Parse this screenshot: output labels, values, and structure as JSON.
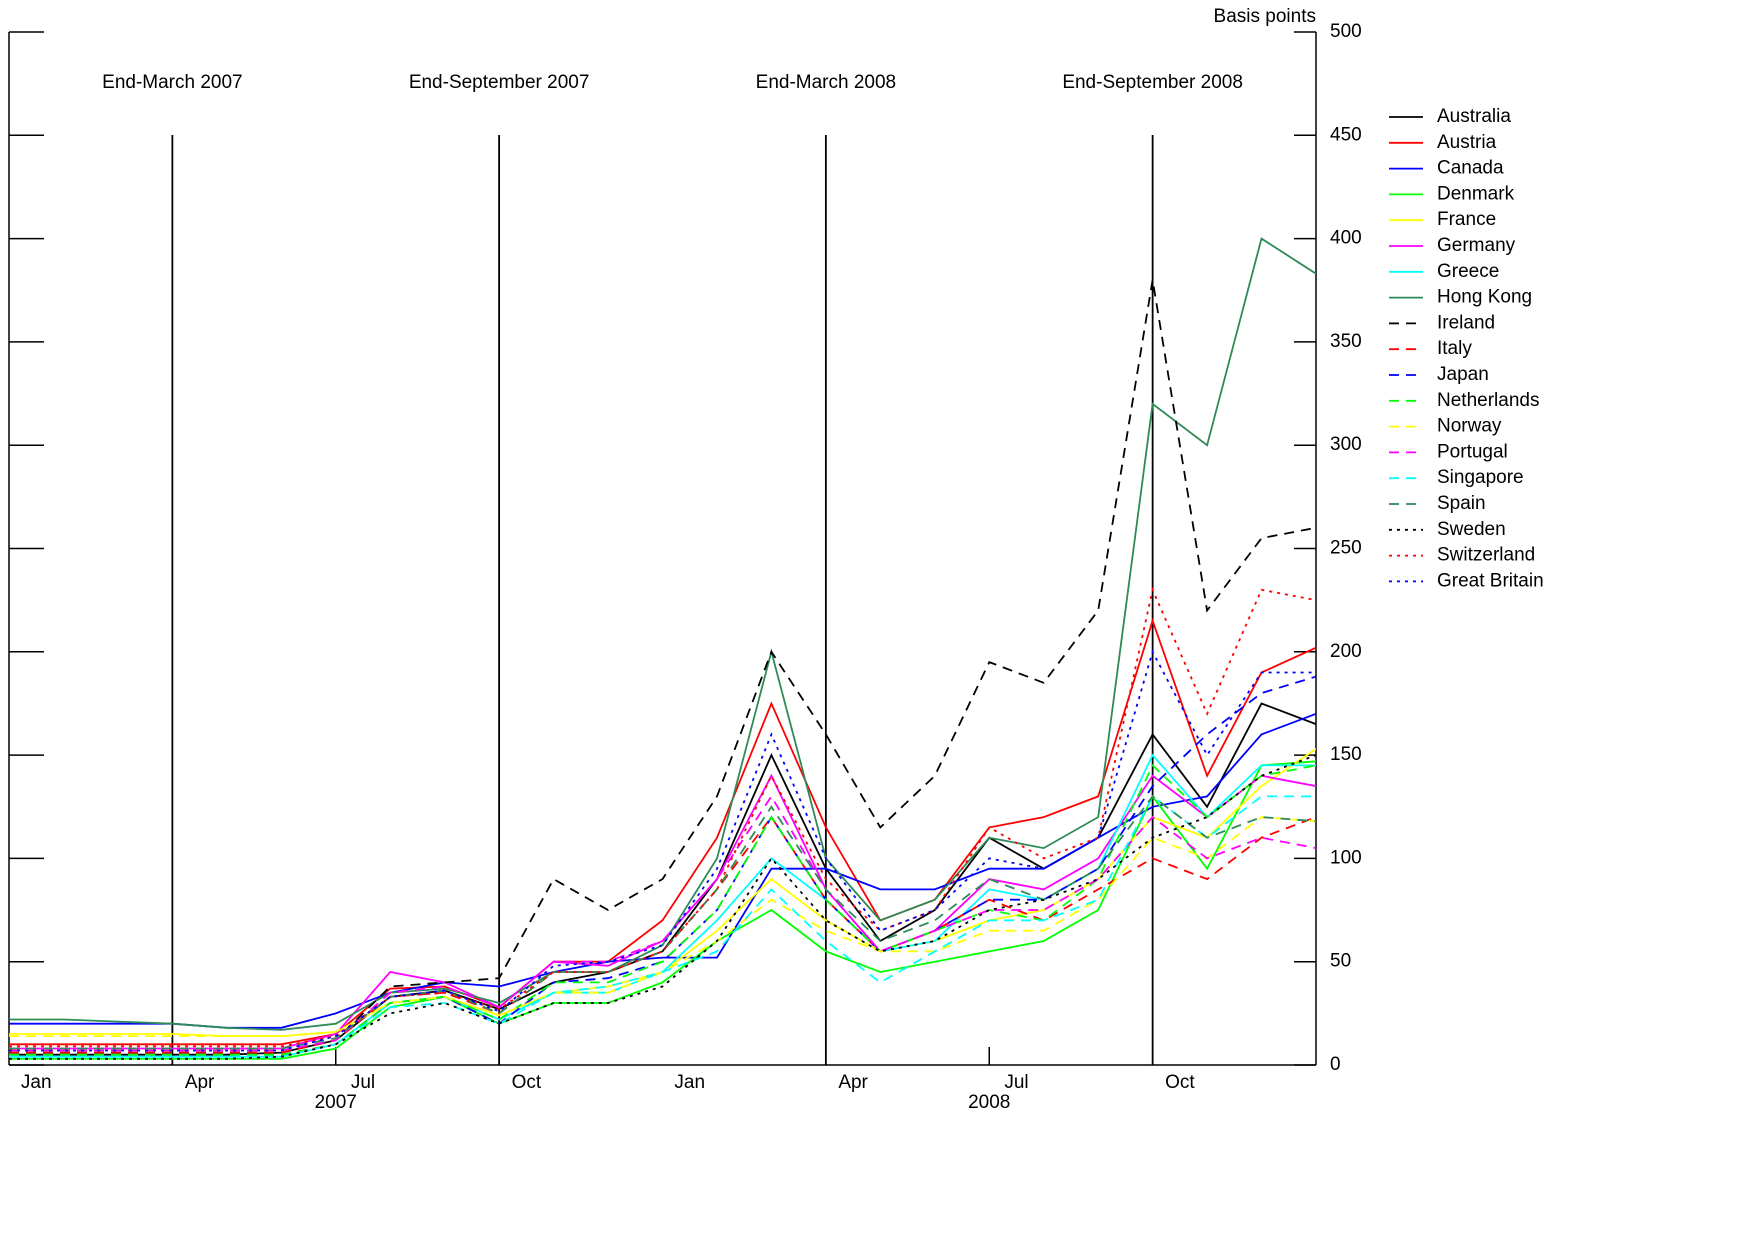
{
  "chart_data": {
    "type": "line",
    "y_label": "Basis points",
    "x": [
      "2007-01",
      "2007-02",
      "2007-03",
      "2007-04",
      "2007-05",
      "2007-06",
      "2007-07",
      "2007-08",
      "2007-09",
      "2007-10",
      "2007-11",
      "2007-12",
      "2008-01",
      "2008-02",
      "2008-03",
      "2008-04",
      "2008-05",
      "2008-06",
      "2008-07",
      "2008-08",
      "2008-09",
      "2008-10",
      "2008-11",
      "2008-12",
      "2009-01"
    ],
    "xlim": [
      "2007-01",
      "2009-01"
    ],
    "xticks": [
      {
        "value": "2007-01",
        "label": "Jan"
      },
      {
        "value": "2007-04",
        "label": "Apr"
      },
      {
        "value": "2007-07",
        "label": "Jul"
      },
      {
        "value": "2007-10",
        "label": "Oct"
      },
      {
        "value": "2008-01",
        "label": "Jan"
      },
      {
        "value": "2008-04",
        "label": "Apr"
      },
      {
        "value": "2008-07",
        "label": "Jul"
      },
      {
        "value": "2008-10",
        "label": "Oct"
      }
    ],
    "year_labels": [
      {
        "value": "2007-07",
        "label": "2007"
      },
      {
        "value": "2008-07",
        "label": "2008"
      }
    ],
    "ylim": [
      0,
      500
    ],
    "yticks": [
      0,
      50,
      100,
      150,
      200,
      250,
      300,
      350,
      400,
      450,
      500
    ],
    "vlines": [
      {
        "x": "2007-04",
        "label": "End-March 2007"
      },
      {
        "x": "2007-10",
        "label": "End-September 2007"
      },
      {
        "x": "2008-04",
        "label": "End-March 2008"
      },
      {
        "x": "2008-10",
        "label": "End-September 2008"
      }
    ],
    "series": [
      {
        "name": "Australia",
        "color": "#000000",
        "dash": "solid",
        "values": [
          5,
          5,
          5,
          5,
          5,
          6,
          12,
          33,
          36,
          27,
          40,
          45,
          55,
          90,
          150,
          95,
          60,
          75,
          110,
          95,
          110,
          160,
          125,
          175,
          165
        ]
      },
      {
        "name": "Austria",
        "color": "#ff0000",
        "dash": "solid",
        "values": [
          10,
          10,
          10,
          10,
          10,
          10,
          15,
          37,
          38,
          28,
          50,
          50,
          70,
          110,
          175,
          115,
          70,
          80,
          115,
          120,
          130,
          215,
          140,
          190,
          202
        ]
      },
      {
        "name": "Canada",
        "color": "#0000ff",
        "dash": "solid",
        "values": [
          20,
          20,
          20,
          20,
          18,
          18,
          25,
          35,
          40,
          38,
          45,
          50,
          52,
          52,
          95,
          95,
          85,
          85,
          95,
          95,
          110,
          125,
          130,
          160,
          170
        ]
      },
      {
        "name": "Denmark",
        "color": "#00ff00",
        "dash": "solid",
        "values": [
          3,
          3,
          3,
          3,
          3,
          3,
          8,
          28,
          33,
          20,
          30,
          30,
          40,
          60,
          75,
          55,
          45,
          50,
          55,
          60,
          75,
          130,
          95,
          145,
          147
        ]
      },
      {
        "name": "France",
        "color": "#ffff00",
        "dash": "solid",
        "values": [
          15,
          15,
          15,
          15,
          14,
          14,
          16,
          30,
          33,
          24,
          35,
          38,
          45,
          65,
          90,
          70,
          55,
          60,
          70,
          75,
          90,
          120,
          110,
          135,
          153
        ]
      },
      {
        "name": "Germany",
        "color": "#ff00ff",
        "dash": "solid",
        "values": [
          8,
          8,
          8,
          8,
          8,
          8,
          15,
          45,
          40,
          28,
          50,
          48,
          60,
          90,
          140,
          85,
          55,
          65,
          90,
          85,
          100,
          140,
          120,
          140,
          135
        ]
      },
      {
        "name": "Greece",
        "color": "#00ffff",
        "dash": "solid",
        "values": [
          4,
          4,
          4,
          4,
          4,
          4,
          10,
          30,
          33,
          22,
          35,
          35,
          45,
          70,
          100,
          80,
          55,
          60,
          85,
          80,
          95,
          150,
          120,
          145,
          145
        ]
      },
      {
        "name": "Hong Kong",
        "color": "#2e8b57",
        "dash": "solid",
        "values": [
          22,
          22,
          21,
          20,
          18,
          17,
          20,
          35,
          37,
          30,
          45,
          45,
          58,
          100,
          200,
          100,
          70,
          80,
          110,
          105,
          120,
          320,
          300,
          400,
          383
        ]
      },
      {
        "name": "Ireland",
        "color": "#000000",
        "dash": "dashed",
        "values": [
          6,
          6,
          6,
          6,
          6,
          6,
          12,
          38,
          40,
          42,
          90,
          75,
          90,
          130,
          200,
          160,
          115,
          140,
          195,
          185,
          220,
          380,
          220,
          255,
          260
        ]
      },
      {
        "name": "Italy",
        "color": "#ff0000",
        "dash": "dashed",
        "values": [
          6,
          6,
          6,
          6,
          6,
          6,
          12,
          33,
          35,
          25,
          45,
          45,
          55,
          85,
          120,
          80,
          55,
          65,
          80,
          70,
          85,
          100,
          90,
          110,
          120
        ]
      },
      {
        "name": "Japan",
        "color": "#0000ff",
        "dash": "dashed",
        "values": [
          5,
          5,
          5,
          5,
          5,
          5,
          10,
          30,
          33,
          20,
          40,
          42,
          50,
          75,
          120,
          80,
          55,
          65,
          80,
          80,
          95,
          135,
          160,
          180,
          188
        ]
      },
      {
        "name": "Netherlands",
        "color": "#00ff00",
        "dash": "dashed",
        "values": [
          5,
          5,
          5,
          5,
          5,
          5,
          10,
          30,
          33,
          22,
          40,
          40,
          50,
          75,
          120,
          80,
          55,
          65,
          75,
          70,
          90,
          145,
          120,
          140,
          145
        ]
      },
      {
        "name": "Norway",
        "color": "#ffff00",
        "dash": "dashed",
        "values": [
          14,
          14,
          14,
          14,
          14,
          14,
          16,
          30,
          33,
          24,
          35,
          35,
          45,
          60,
          80,
          65,
          55,
          55,
          65,
          65,
          80,
          110,
          100,
          120,
          118
        ]
      },
      {
        "name": "Portugal",
        "color": "#ff00ff",
        "dash": "dashed",
        "values": [
          7,
          7,
          7,
          7,
          7,
          7,
          12,
          35,
          38,
          28,
          50,
          50,
          60,
          90,
          130,
          85,
          55,
          65,
          75,
          75,
          90,
          120,
          100,
          110,
          105
        ]
      },
      {
        "name": "Singapore",
        "color": "#00ffff",
        "dash": "dashed",
        "values": [
          4,
          4,
          4,
          4,
          4,
          4,
          10,
          28,
          30,
          20,
          35,
          38,
          45,
          55,
          85,
          60,
          40,
          55,
          70,
          70,
          80,
          130,
          110,
          130,
          130
        ]
      },
      {
        "name": "Spain",
        "color": "#2e8b57",
        "dash": "dashed",
        "values": [
          8,
          8,
          8,
          8,
          8,
          8,
          13,
          33,
          36,
          25,
          45,
          45,
          55,
          85,
          125,
          85,
          60,
          70,
          90,
          80,
          95,
          130,
          110,
          120,
          118
        ]
      },
      {
        "name": "Sweden",
        "color": "#000000",
        "dash": "dotted",
        "values": [
          3,
          3,
          3,
          3,
          3,
          4,
          10,
          25,
          30,
          20,
          30,
          30,
          38,
          60,
          100,
          70,
          55,
          60,
          75,
          80,
          90,
          110,
          120,
          140,
          150
        ]
      },
      {
        "name": "Switzerland",
        "color": "#ff0000",
        "dash": "dotted",
        "values": [
          9,
          9,
          9,
          9,
          9,
          9,
          14,
          33,
          35,
          27,
          45,
          45,
          55,
          85,
          140,
          90,
          65,
          75,
          115,
          100,
          110,
          230,
          170,
          230,
          225
        ]
      },
      {
        "name": "Great Britain",
        "color": "#0000ff",
        "dash": "dotted",
        "values": [
          7,
          7,
          7,
          7,
          7,
          7,
          14,
          33,
          36,
          26,
          48,
          50,
          58,
          95,
          160,
          100,
          65,
          75,
          100,
          95,
          110,
          200,
          150,
          190,
          190
        ]
      }
    ]
  }
}
